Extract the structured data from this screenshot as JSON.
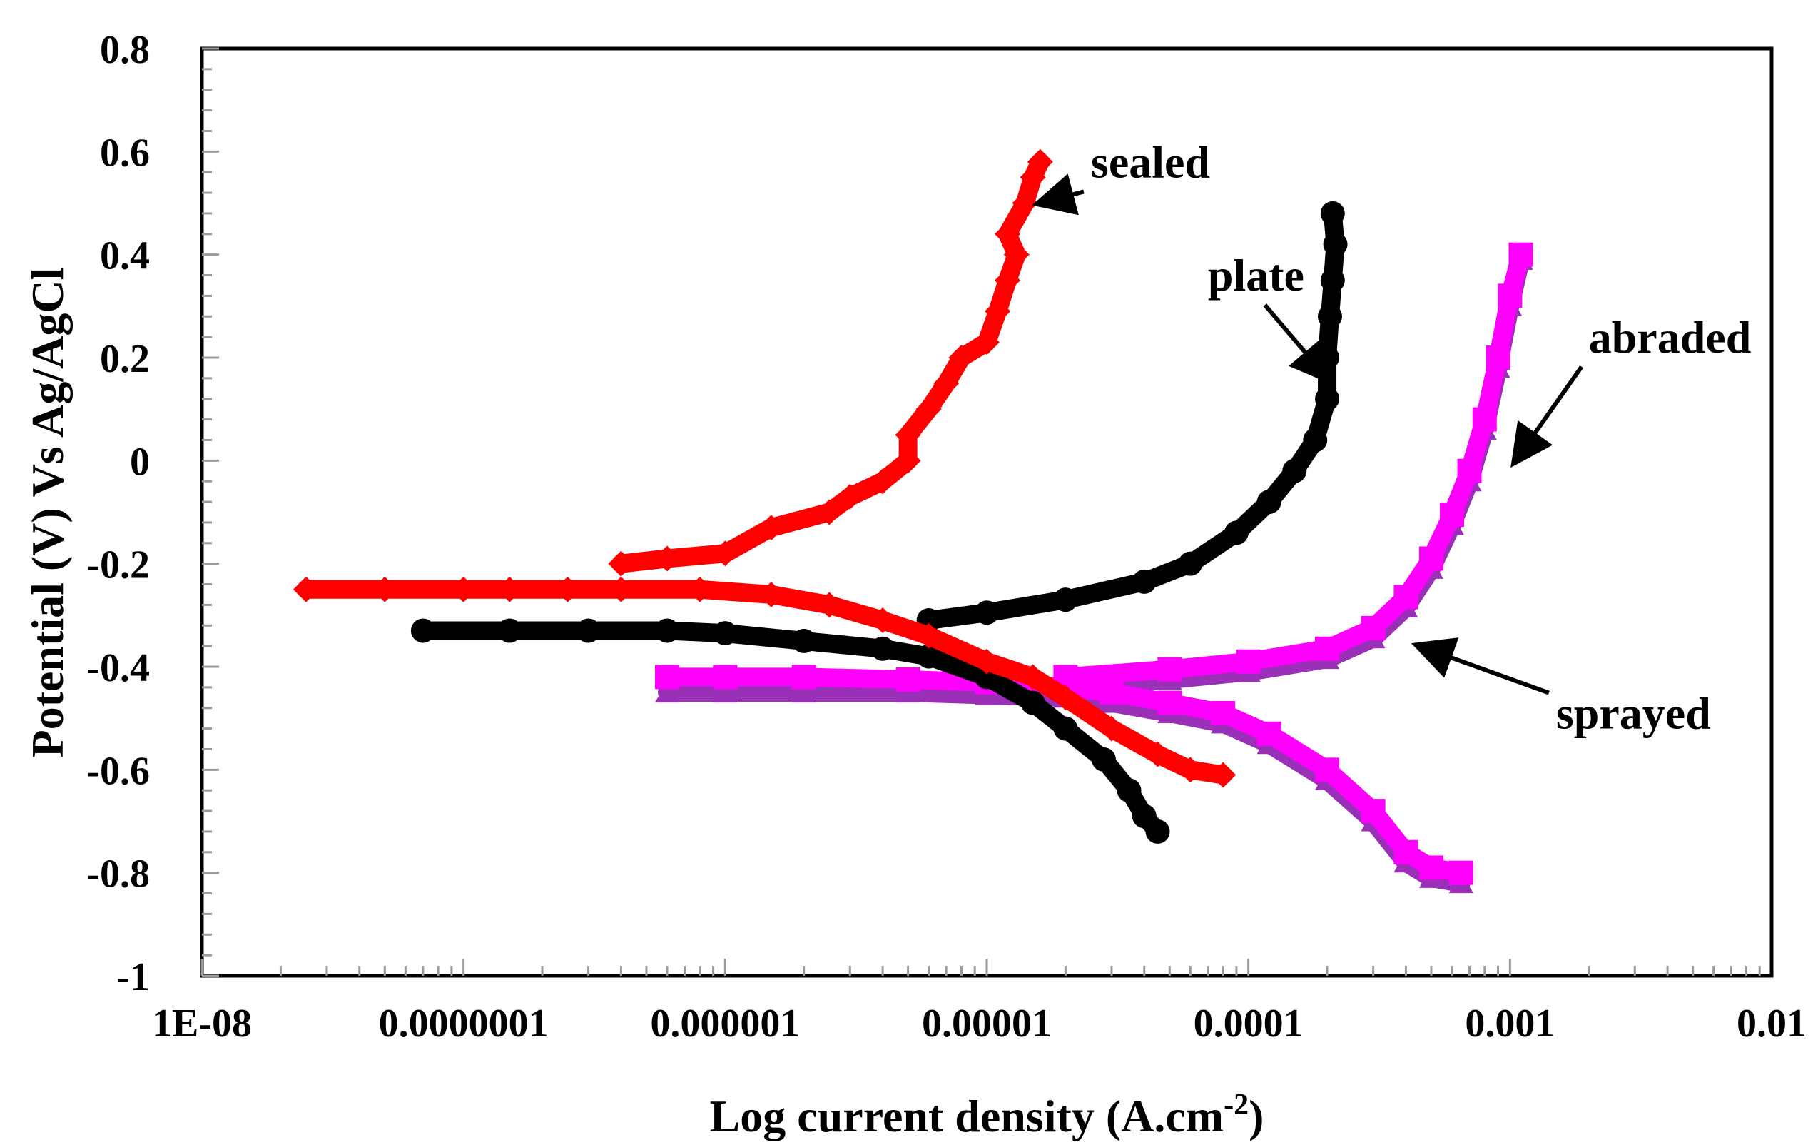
{
  "chart_data": {
    "type": "line",
    "title": "",
    "xlabel_main": "Log current density (A.cm",
    "xlabel_sup": "-2",
    "xlabel_end": ")",
    "ylabel": "Potential (V) Vs Ag/AgCl",
    "xscale": "log",
    "xlim": [
      1e-08,
      0.01
    ],
    "ylim": [
      -1,
      0.8
    ],
    "x_tick_values": [
      1e-08,
      1e-07,
      1e-06,
      1e-05,
      0.0001,
      0.001,
      0.01
    ],
    "x_tick_labels": [
      "1E-08",
      "0.0000001",
      "0.000001",
      "0.00001",
      "0.0001",
      "0.001",
      "0.01"
    ],
    "y_tick_values": [
      0.8,
      0.6,
      0.4,
      0.2,
      0,
      -0.2,
      -0.4,
      -0.6,
      -0.8,
      -1
    ],
    "y_tick_labels": [
      "0.8",
      "0.6",
      "0.4",
      "0.2",
      "0",
      "-0.2",
      "-0.4",
      "-0.6",
      "-0.8",
      "-1"
    ],
    "grid": false,
    "legend": "none",
    "series": [
      {
        "name": "sprayed",
        "color": "#9b30b8",
        "marker": "triangle",
        "points": [
          [
            6e-07,
            -0.45
          ],
          [
            1e-06,
            -0.45
          ],
          [
            2e-06,
            -0.45
          ],
          [
            5e-06,
            -0.45
          ],
          [
            1e-05,
            -0.455
          ],
          [
            2e-05,
            -0.46
          ],
          [
            3e-05,
            -0.47
          ],
          [
            5e-05,
            -0.49
          ],
          [
            8e-05,
            -0.51
          ],
          [
            0.00012,
            -0.55
          ],
          [
            0.0002,
            -0.62
          ],
          [
            0.0003,
            -0.7
          ],
          [
            0.0004,
            -0.78
          ],
          [
            0.0005,
            -0.81
          ],
          [
            0.00065,
            -0.82
          ],
          [
            2e-05,
            -0.44
          ],
          [
            5e-05,
            -0.425
          ],
          [
            0.0001,
            -0.41
          ],
          [
            0.0002,
            -0.385
          ],
          [
            0.0003,
            -0.345
          ],
          [
            0.0004,
            -0.285
          ],
          [
            0.0005,
            -0.21
          ],
          [
            0.0006,
            -0.125
          ],
          [
            0.0007,
            -0.04
          ],
          [
            0.0008,
            0.06
          ],
          [
            0.0009,
            0.18
          ],
          [
            0.001,
            0.3
          ],
          [
            0.0011,
            0.39
          ]
        ]
      },
      {
        "name": "abraded",
        "color": "#ff00ff",
        "marker": "square",
        "points": [
          [
            6e-07,
            -0.42
          ],
          [
            1e-06,
            -0.42
          ],
          [
            2e-06,
            -0.42
          ],
          [
            5e-06,
            -0.425
          ],
          [
            1e-05,
            -0.43
          ],
          [
            2e-05,
            -0.44
          ],
          [
            3e-05,
            -0.45
          ],
          [
            5e-05,
            -0.47
          ],
          [
            8e-05,
            -0.49
          ],
          [
            0.00012,
            -0.53
          ],
          [
            0.0002,
            -0.6
          ],
          [
            0.0003,
            -0.68
          ],
          [
            0.0004,
            -0.76
          ],
          [
            0.0005,
            -0.79
          ],
          [
            0.00065,
            -0.8
          ],
          [
            2e-05,
            -0.42
          ],
          [
            5e-05,
            -0.405
          ],
          [
            0.0001,
            -0.39
          ],
          [
            0.0002,
            -0.365
          ],
          [
            0.0003,
            -0.325
          ],
          [
            0.0004,
            -0.265
          ],
          [
            0.0005,
            -0.19
          ],
          [
            0.0006,
            -0.105
          ],
          [
            0.0007,
            -0.02
          ],
          [
            0.0008,
            0.08
          ],
          [
            0.0009,
            0.2
          ],
          [
            0.001,
            0.32
          ],
          [
            0.0011,
            0.4
          ]
        ]
      },
      {
        "name": "plate",
        "color": "#000000",
        "marker": "circle",
        "points": [
          [
            7e-08,
            -0.33
          ],
          [
            1.5e-07,
            -0.33
          ],
          [
            3e-07,
            -0.33
          ],
          [
            6e-07,
            -0.33
          ],
          [
            1e-06,
            -0.335
          ],
          [
            2e-06,
            -0.35
          ],
          [
            4e-06,
            -0.365
          ],
          [
            6e-06,
            -0.38
          ],
          [
            1e-05,
            -0.42
          ],
          [
            1.5e-05,
            -0.47
          ],
          [
            2e-05,
            -0.52
          ],
          [
            2.8e-05,
            -0.58
          ],
          [
            3.5e-05,
            -0.64
          ],
          [
            4e-05,
            -0.69
          ],
          [
            4.5e-05,
            -0.72
          ],
          [
            6e-06,
            -0.31
          ],
          [
            1e-05,
            -0.295
          ],
          [
            2e-05,
            -0.27
          ],
          [
            4e-05,
            -0.235
          ],
          [
            6e-05,
            -0.2
          ],
          [
            9e-05,
            -0.14
          ],
          [
            0.00012,
            -0.08
          ],
          [
            0.00015,
            -0.02
          ],
          [
            0.00018,
            0.04
          ],
          [
            0.0002,
            0.12
          ],
          [
            0.0002,
            0.2
          ],
          [
            0.000205,
            0.28
          ],
          [
            0.00021,
            0.35
          ],
          [
            0.000215,
            0.42
          ],
          [
            0.00021,
            0.48
          ]
        ]
      },
      {
        "name": "sealed",
        "color": "#ff0000",
        "marker": "diamond",
        "points": [
          [
            2.5e-08,
            -0.25
          ],
          [
            5e-08,
            -0.25
          ],
          [
            1e-07,
            -0.25
          ],
          [
            1.5e-07,
            -0.25
          ],
          [
            2.5e-07,
            -0.25
          ],
          [
            4e-07,
            -0.25
          ],
          [
            8e-07,
            -0.25
          ],
          [
            1.5e-06,
            -0.26
          ],
          [
            2.5e-06,
            -0.28
          ],
          [
            4e-06,
            -0.31
          ],
          [
            6e-06,
            -0.34
          ],
          [
            1e-05,
            -0.39
          ],
          [
            1.5e-05,
            -0.42
          ],
          [
            2e-05,
            -0.46
          ],
          [
            3e-05,
            -0.52
          ],
          [
            4.5e-05,
            -0.57
          ],
          [
            6e-05,
            -0.6
          ],
          [
            8e-05,
            -0.61
          ],
          [
            4e-07,
            -0.2
          ],
          [
            6e-07,
            -0.19
          ],
          [
            1e-06,
            -0.18
          ],
          [
            1.5e-06,
            -0.13
          ],
          [
            2.5e-06,
            -0.1
          ],
          [
            3e-06,
            -0.07
          ],
          [
            4e-06,
            -0.04
          ],
          [
            5e-06,
            0.0
          ],
          [
            5e-06,
            0.05
          ],
          [
            6e-06,
            0.1
          ],
          [
            7e-06,
            0.15
          ],
          [
            8e-06,
            0.2
          ],
          [
            1e-05,
            0.23
          ],
          [
            1.1e-05,
            0.29
          ],
          [
            1.2e-05,
            0.35
          ],
          [
            1.3e-05,
            0.4
          ],
          [
            1.2e-05,
            0.44
          ],
          [
            1.4e-05,
            0.5
          ],
          [
            1.5e-05,
            0.55
          ],
          [
            1.6e-05,
            0.58
          ]
        ]
      }
    ],
    "annotations": [
      {
        "text": "sealed",
        "x": 2.5e-05,
        "y": 0.55,
        "target": [
          1.6e-05,
          0.5
        ]
      },
      {
        "text": "plate",
        "x": 7e-05,
        "y": 0.33,
        "target": [
          0.0002,
          0.16
        ]
      },
      {
        "text": "abraded",
        "x": 0.002,
        "y": 0.21,
        "target": [
          0.00105,
          0.0
        ]
      },
      {
        "text": "sprayed",
        "x": 0.0015,
        "y": -0.52,
        "target": [
          0.00045,
          -0.36
        ]
      }
    ]
  }
}
